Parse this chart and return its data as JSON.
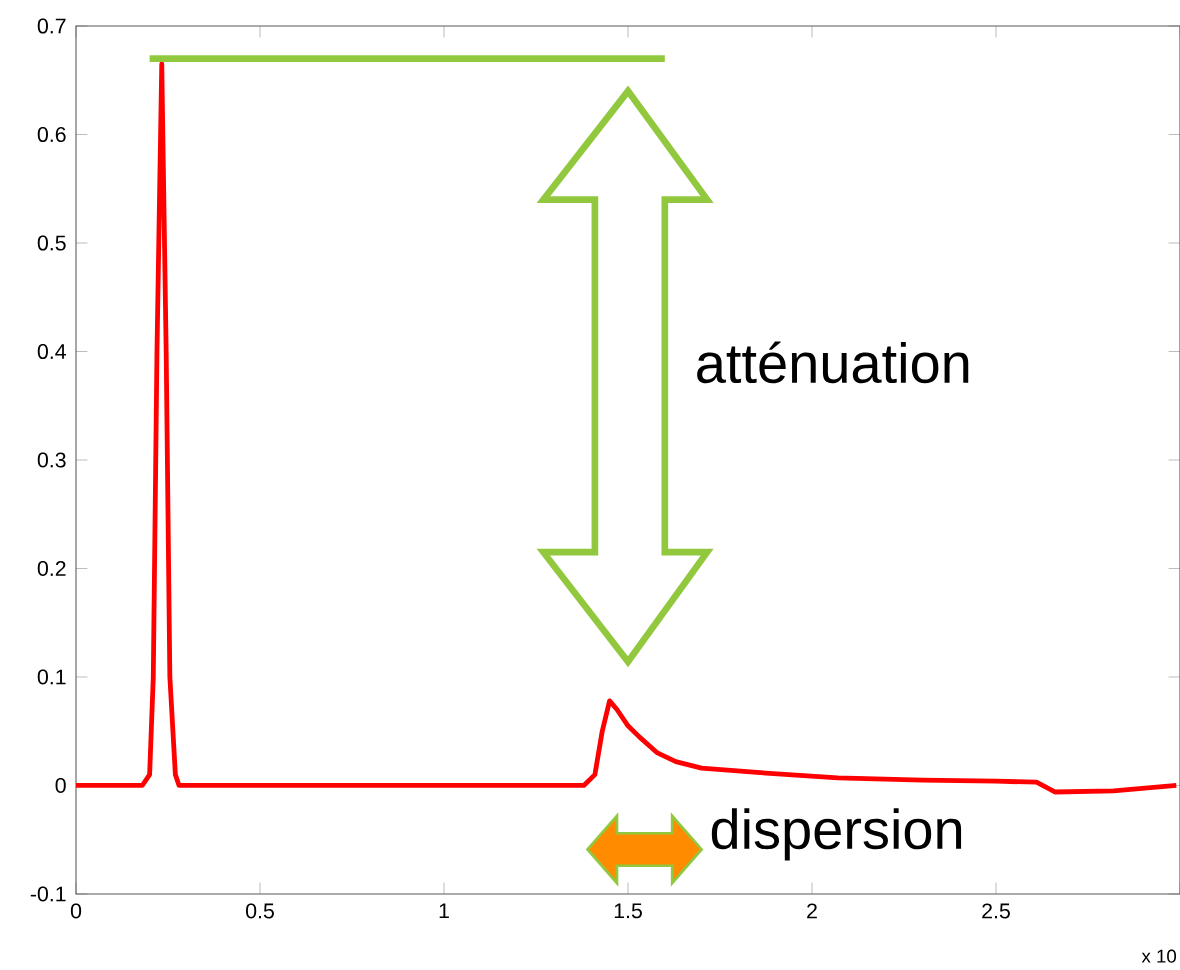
{
  "chart_data": {
    "type": "line",
    "x": [
      0,
      0.18,
      0.2,
      0.21,
      0.22,
      0.233,
      0.245,
      0.255,
      0.27,
      0.28,
      0.3,
      0.6,
      1.0,
      1.38,
      1.41,
      1.43,
      1.45,
      1.47,
      1.5,
      1.53,
      1.58,
      1.63,
      1.7,
      1.85,
      2.07,
      2.3,
      2.5,
      2.61,
      2.66,
      2.82,
      2.99
    ],
    "series": [
      {
        "color": "#ff0000",
        "values": [
          0,
          0,
          0.01,
          0.1,
          0.4,
          0.665,
          0.4,
          0.1,
          0.01,
          0,
          0,
          0,
          0,
          0,
          0.01,
          0.05,
          0.078,
          0.07,
          0.055,
          0.045,
          0.03,
          0.022,
          0.016,
          0.012,
          0.007,
          0.005,
          0.004,
          0.003,
          -0.006,
          -0.005,
          0
        ]
      }
    ],
    "xlim": [
      0,
      3
    ],
    "ylim": [
      -0.1,
      0.7
    ],
    "xticks": [
      0,
      0.5,
      1,
      1.5,
      2,
      2.5,
      {
        "value": 3,
        "label": null
      }
    ],
    "yticks": [
      -0.1,
      0,
      0.1,
      0.2,
      0.3,
      0.4,
      0.5,
      0.6,
      0.7
    ],
    "ref_lines": [
      {
        "axis": "y",
        "value": 0.67,
        "color": "#92c83e"
      }
    ],
    "annotations": [
      "atténuation",
      "dispersion",
      "x 10"
    ],
    "grid": false,
    "marker": "none",
    "line_style": "solid"
  }
}
